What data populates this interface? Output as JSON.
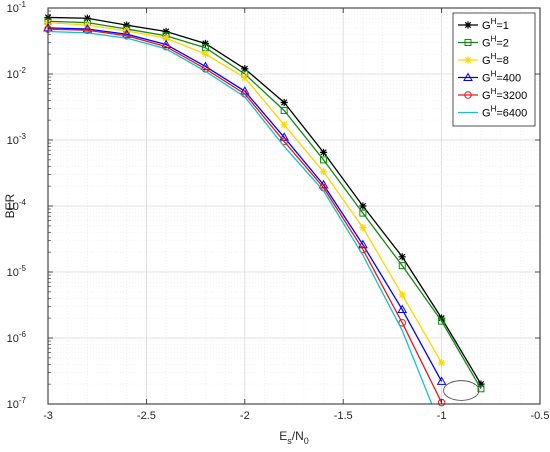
{
  "chart_data": {
    "type": "line",
    "xlabel_main": "E",
    "xlabel_sub1": "s",
    "xlabel_sep": "/N",
    "xlabel_sub2": "0",
    "ylabel": "BER",
    "xlim": [
      -3,
      -0.5
    ],
    "ylim": [
      1e-07,
      0.1
    ],
    "yscale": "log",
    "grid": true,
    "legend_position": "top-right",
    "x_ticks": [
      "-3",
      "-2.5",
      "-2",
      "-1.5",
      "-1",
      "-0.5"
    ],
    "y_tick_base": "10",
    "y_tick_exponents": [
      "-7",
      "-6",
      "-5",
      "-4",
      "-3",
      "-2",
      "-1"
    ],
    "series": [
      {
        "name_main": "G",
        "name_sup": "H",
        "name_value": "=1",
        "color": "#000000",
        "marker": "star",
        "x": [
          -3.0,
          -2.8,
          -2.6,
          -2.4,
          -2.2,
          -2.0,
          -1.8,
          -1.6,
          -1.4,
          -1.2,
          -1.0,
          -0.8
        ],
        "y": [
          0.072,
          0.07,
          0.055,
          0.044,
          0.029,
          0.012,
          0.0037,
          0.00065,
          0.0001,
          1.7e-05,
          2e-06,
          2e-07
        ]
      },
      {
        "name_main": "G",
        "name_sup": "H",
        "name_value": "=2",
        "color": "#138a13",
        "marker": "square",
        "x": [
          -3.0,
          -2.8,
          -2.6,
          -2.4,
          -2.2,
          -2.0,
          -1.8,
          -1.6,
          -1.4,
          -1.2,
          -1.0,
          -0.8
        ],
        "y": [
          0.063,
          0.06,
          0.048,
          0.038,
          0.025,
          0.01,
          0.0028,
          0.0005,
          7.8e-05,
          1.25e-05,
          1.8e-06,
          1.7e-07
        ]
      },
      {
        "name_main": "G",
        "name_sup": "H",
        "name_value": "=8",
        "color": "#ffd700",
        "marker": "star",
        "x": [
          -3.0,
          -2.8,
          -2.6,
          -2.4,
          -2.2,
          -2.0,
          -1.8,
          -1.6,
          -1.4,
          -1.2,
          -1.0
        ],
        "y": [
          0.06,
          0.055,
          0.045,
          0.035,
          0.02,
          0.0088,
          0.0017,
          0.00033,
          4.7e-05,
          4.5e-06,
          4.2e-07
        ]
      },
      {
        "name_main": "G",
        "name_sup": "H",
        "name_value": "=400",
        "color": "#0000ff",
        "marker": "triangle",
        "x": [
          -3.0,
          -2.8,
          -2.6,
          -2.4,
          -2.2,
          -2.0,
          -1.8,
          -1.6,
          -1.4,
          -1.2,
          -1.0
        ],
        "y": [
          0.05,
          0.048,
          0.04,
          0.028,
          0.013,
          0.0055,
          0.0011,
          0.00021,
          2.6e-05,
          2.7e-06,
          2.2e-07
        ]
      },
      {
        "name_main": "G",
        "name_sup": "H",
        "name_value": "=3200",
        "color": "#e31a1c",
        "marker": "circle",
        "x": [
          -3.0,
          -2.8,
          -2.6,
          -2.4,
          -2.2,
          -2.0,
          -1.8,
          -1.6,
          -1.4,
          -1.2,
          -1.0
        ],
        "y": [
          0.048,
          0.046,
          0.038,
          0.026,
          0.012,
          0.005,
          0.00095,
          0.00019,
          2.2e-05,
          1.7e-06,
          1.05e-07
        ]
      },
      {
        "name_main": "G",
        "name_sup": "H",
        "name_value": "=6400",
        "color": "#17becf",
        "marker": "none",
        "x": [
          -3.0,
          -2.8,
          -2.6,
          -2.4,
          -2.2,
          -2.0,
          -1.8,
          -1.6,
          -1.4,
          -1.2,
          -1.05
        ],
        "y": [
          0.044,
          0.042,
          0.035,
          0.024,
          0.011,
          0.0045,
          0.0008,
          0.00017,
          1.8e-05,
          1.3e-06,
          1e-07
        ]
      }
    ],
    "annotation": {
      "type": "ellipse",
      "x_center": -0.9,
      "y_center": 1.6e-07,
      "x_radius": 0.09,
      "decades_radius": 0.15
    }
  }
}
